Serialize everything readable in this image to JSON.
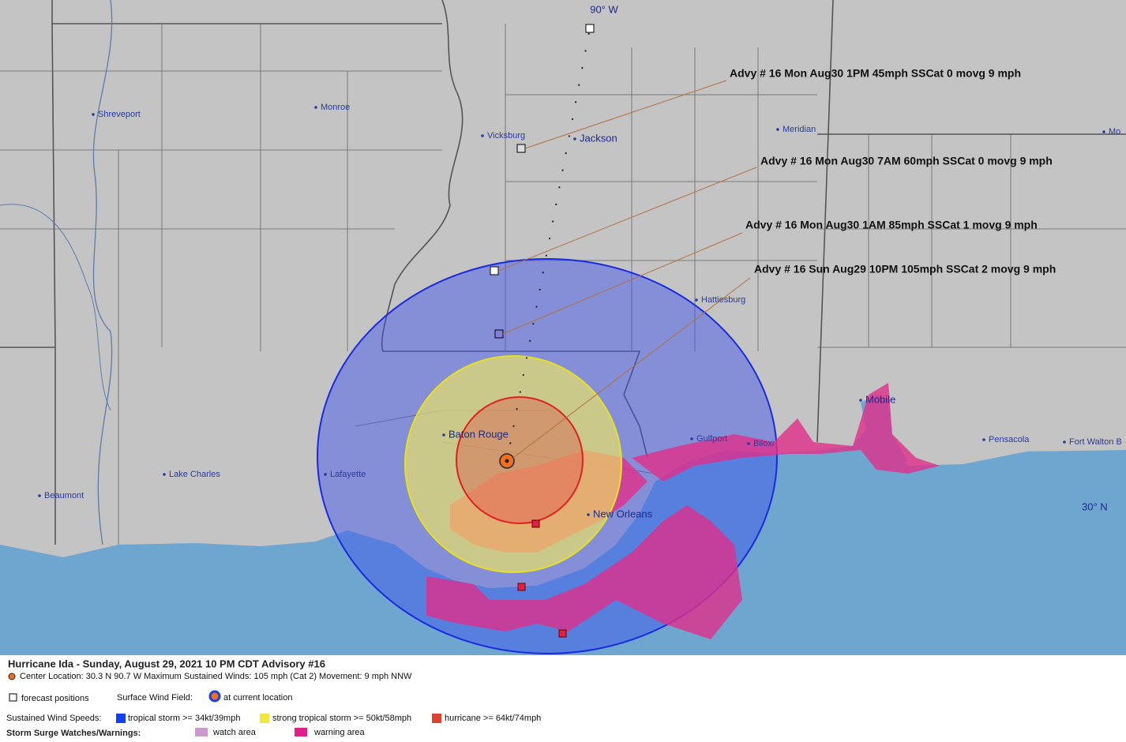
{
  "map": {
    "grid_labels": {
      "meridian": "90° W",
      "parallel": "30° N"
    },
    "cities": [
      "Shreveport",
      "Monroe",
      "Vicksburg",
      "Jackson",
      "Meridian",
      "Mo",
      "Hattiesburg",
      "Baton Rouge",
      "Lafayette",
      "Lake Charles",
      "Beaumont",
      "New Orleans",
      "Gulfport",
      "Biloxi",
      "Mobile",
      "Pensacola",
      "Fort Walton B"
    ],
    "advisories": [
      "Advy # 16 Mon Aug30 1PM  45mph SSCat 0 movg 9 mph",
      "Advy # 16 Mon Aug30 7AM  60mph SSCat 0 movg 9 mph",
      "Advy # 16 Mon Aug30 1AM  85mph SSCat 1 movg 9 mph",
      "Advy # 16 Sun Aug29 10PM  105mph SSCat 2 movg 9 mph"
    ]
  },
  "legend": {
    "title": "Hurricane Ida  -  Sunday, August 29, 2021  10 PM CDT   Advisory #16",
    "center": "Center Location: 30.3 N  90.7 W   Maximum Sustained Winds: 105 mph (Cat 2) Movement: 9 mph NNW",
    "forecast_positions": "forecast positions",
    "surface_wind_field": "Surface Wind Field:",
    "current_location": "at current location",
    "wind_speeds_label": "Sustained Wind Speeds:",
    "tropical_storm": "tropical storm >= 34kt/39mph",
    "strong_tropical_storm": "strong tropical storm >= 50kt/58mph",
    "hurricane": "hurricane >= 64kt/74mph",
    "surge_label": "Storm Surge Watches/Warnings:",
    "watch_area": "watch area",
    "warning_area": "warning area"
  }
}
